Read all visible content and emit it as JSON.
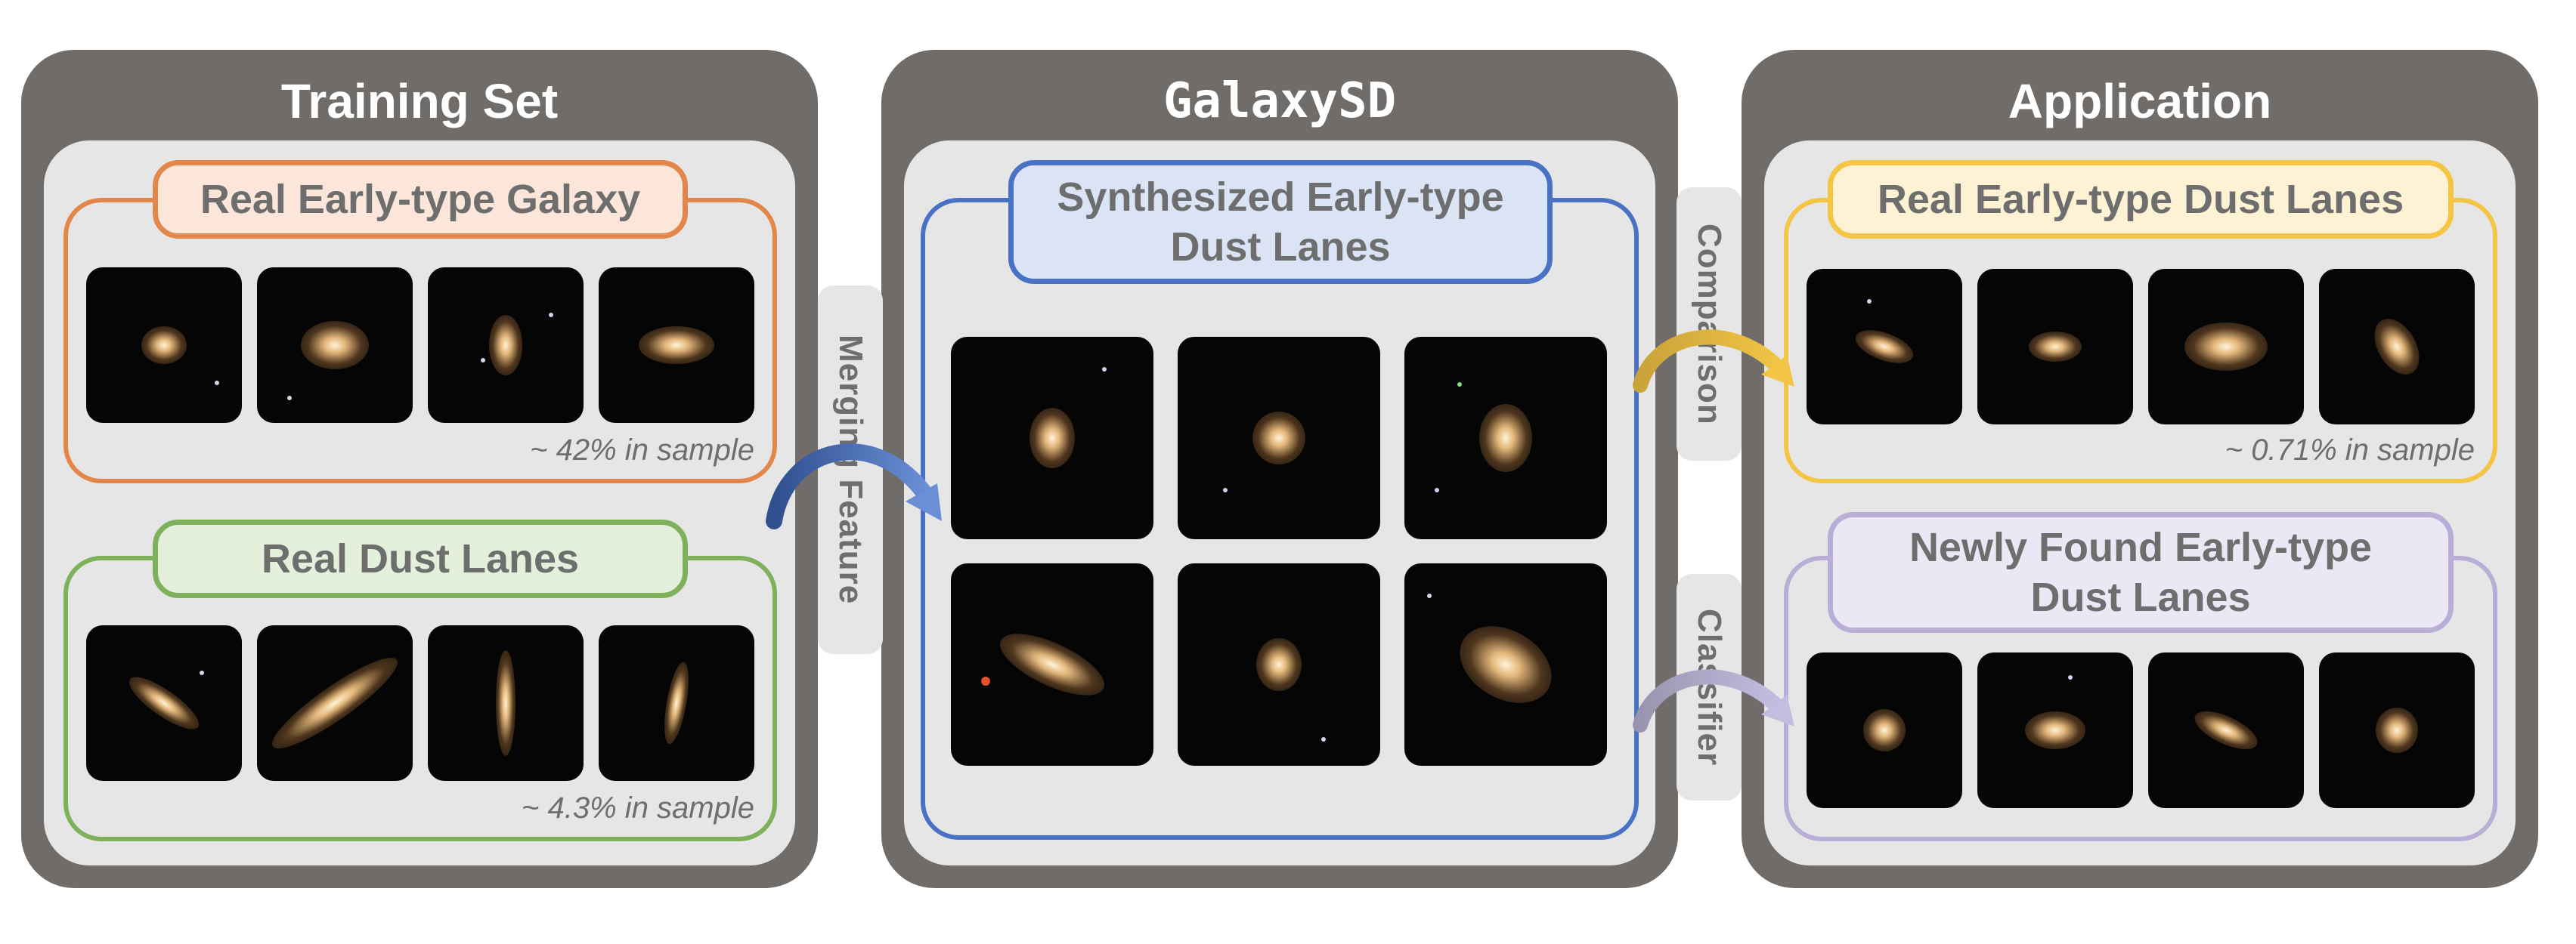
{
  "panels": {
    "training": {
      "title": "Training Set",
      "real_early": {
        "label": "Real Early-type Galaxy",
        "note": "~ 42% in sample"
      },
      "real_dust": {
        "label": "Real Dust Lanes",
        "note": "~ 4.3% in sample"
      }
    },
    "galaxysd": {
      "title": "GalaxySD",
      "synth": {
        "label_line1": "Synthesized Early-type",
        "label_line2": "Dust Lanes"
      }
    },
    "application": {
      "title": "Application",
      "real_early_dust": {
        "label": "Real Early-type Dust Lanes",
        "note": "~ 0.71% in sample"
      },
      "newly_found": {
        "label_line1": "Newly Found Early-type",
        "label_line2": "Dust Lanes"
      }
    }
  },
  "connectors": {
    "merging": "Merging Feature",
    "comparison": "Comparison",
    "classifier": "Classifier"
  },
  "colors": {
    "panel_bg": "#706c6a",
    "inner_bg": "#e6e6e6",
    "orange": "#e2864a",
    "orange_fill": "#fbe6d9",
    "green": "#7fb05b",
    "green_fill": "#e5f0dc",
    "blue": "#4a72c4",
    "blue_fill": "#dbe4f5",
    "yellow": "#f2c545",
    "yellow_fill": "#fdf3d4",
    "purple": "#b9afd6",
    "purple_fill": "#ebe7f4"
  }
}
